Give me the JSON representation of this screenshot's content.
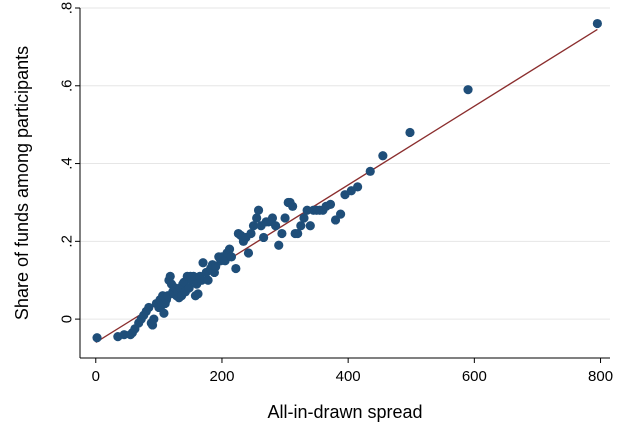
{
  "chart_data": {
    "type": "scatter",
    "xlabel": "All-in-drawn spread",
    "ylabel": "Share of funds among participants",
    "xlim": [
      -25,
      815
    ],
    "ylim": [
      -0.1,
      0.8
    ],
    "xticks": [
      0,
      200,
      400,
      600,
      800
    ],
    "xtick_labels": [
      "0",
      "200",
      "400",
      "600",
      "800"
    ],
    "yticks": [
      0,
      0.2,
      0.4,
      0.6,
      0.8
    ],
    "ytick_labels": [
      "0",
      ".2",
      ".4",
      ".6",
      ".8"
    ],
    "grid": "horizontal",
    "colors": {
      "points": "#1f4e79",
      "fit_line": "#8b2e2e"
    },
    "series": [
      {
        "type": "scatter",
        "x": [
          2,
          35,
          45,
          55,
          58,
          62,
          68,
          72,
          76,
          80,
          84,
          88,
          90,
          92,
          96,
          100,
          102,
          104,
          106,
          108,
          110,
          112,
          114,
          116,
          118,
          120,
          122,
          124,
          126,
          128,
          130,
          132,
          134,
          136,
          138,
          140,
          142,
          145,
          148,
          150,
          152,
          155,
          158,
          160,
          162,
          165,
          168,
          170,
          175,
          178,
          182,
          185,
          188,
          190,
          195,
          198,
          200,
          205,
          208,
          212,
          215,
          222,
          226,
          230,
          234,
          238,
          242,
          246,
          250,
          255,
          258,
          262,
          266,
          270,
          274,
          280,
          285,
          290,
          295,
          300,
          305,
          308,
          312,
          316,
          320,
          325,
          330,
          335,
          340,
          345,
          350,
          355,
          360,
          365,
          372,
          380,
          388,
          395,
          405,
          415,
          435,
          455,
          498,
          590,
          795
        ],
        "y": [
          -0.048,
          -0.045,
          -0.04,
          -0.04,
          -0.035,
          -0.025,
          -0.01,
          0.0,
          0.01,
          0.02,
          0.03,
          -0.01,
          -0.015,
          0.0,
          0.04,
          0.03,
          0.05,
          0.035,
          0.06,
          0.015,
          0.04,
          0.05,
          0.06,
          0.1,
          0.11,
          0.09,
          0.07,
          0.065,
          0.08,
          0.06,
          0.07,
          0.055,
          0.08,
          0.06,
          0.09,
          0.095,
          0.07,
          0.11,
          0.08,
          0.11,
          0.1,
          0.11,
          0.06,
          0.09,
          0.065,
          0.11,
          0.1,
          0.145,
          0.12,
          0.1,
          0.13,
          0.14,
          0.12,
          0.135,
          0.16,
          0.15,
          0.16,
          0.15,
          0.17,
          0.18,
          0.16,
          0.13,
          0.22,
          0.215,
          0.2,
          0.21,
          0.17,
          0.22,
          0.24,
          0.26,
          0.28,
          0.24,
          0.21,
          0.25,
          0.25,
          0.26,
          0.24,
          0.19,
          0.22,
          0.26,
          0.3,
          0.3,
          0.29,
          0.22,
          0.22,
          0.24,
          0.26,
          0.28,
          0.24,
          0.28,
          0.28,
          0.28,
          0.28,
          0.29,
          0.295,
          0.255,
          0.27,
          0.32,
          0.33,
          0.34,
          0.38,
          0.42,
          0.48,
          0.59,
          0.76
        ]
      },
      {
        "type": "line",
        "x": [
          0,
          795
        ],
        "y": [
          -0.06,
          0.745
        ]
      }
    ]
  }
}
